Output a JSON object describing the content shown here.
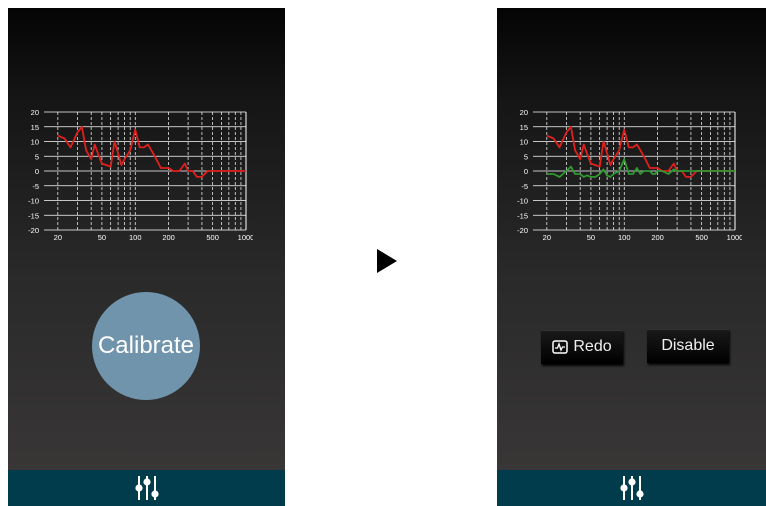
{
  "left_screen": {
    "calibrate_label": "Calibrate",
    "bottom_nav_icon": "equalizer-sliders-icon"
  },
  "transition_icon": "play-arrow-icon",
  "right_screen": {
    "redo_label": "Redo",
    "redo_icon": "waveform-icon",
    "disable_label": "Disable",
    "bottom_nav_icon": "equalizer-sliders-icon"
  },
  "colors": {
    "calibrate_button": "#7194ad",
    "bottom_bar": "#003c4c",
    "measured_curve": "#e0201c",
    "corrected_curve": "#2f9a2f",
    "grid": "#ffffff"
  },
  "chart_data": [
    {
      "type": "line",
      "x_scale": "log",
      "xlim": [
        15,
        1000
      ],
      "ylim": [
        -20,
        20
      ],
      "x_ticks": [
        20,
        50,
        100,
        200,
        500,
        1000
      ],
      "y_ticks": [
        20,
        15,
        10,
        5,
        0,
        -5,
        -10,
        -15,
        -20
      ],
      "grid": true,
      "series": [
        {
          "color": "#e0201c",
          "x": [
            20,
            23,
            26,
            30,
            33,
            36,
            40,
            43,
            46,
            50,
            55,
            60,
            65,
            70,
            75,
            80,
            90,
            100,
            110,
            120,
            130,
            140,
            150,
            160,
            170,
            180,
            190,
            200,
            220,
            250,
            280,
            300,
            330,
            360,
            400,
            450,
            500,
            600,
            700,
            800,
            900,
            1000
          ],
          "y": [
            12,
            11,
            8,
            13,
            15,
            7,
            4,
            9,
            6,
            2.5,
            2,
            1.5,
            10,
            6,
            2,
            4,
            7,
            14,
            8,
            8,
            9,
            7,
            5,
            3,
            1,
            1,
            1,
            1,
            0,
            0,
            2.5,
            0,
            0,
            -2,
            -2,
            0,
            0,
            0,
            0,
            0,
            0,
            0
          ]
        }
      ]
    },
    {
      "type": "line",
      "x_scale": "log",
      "xlim": [
        15,
        1000
      ],
      "ylim": [
        -20,
        20
      ],
      "x_ticks": [
        20,
        50,
        100,
        200,
        500,
        1000
      ],
      "y_ticks": [
        20,
        15,
        10,
        5,
        0,
        -5,
        -10,
        -15,
        -20
      ],
      "grid": true,
      "series": [
        {
          "color": "#e0201c",
          "x": [
            20,
            23,
            26,
            30,
            33,
            36,
            40,
            43,
            46,
            50,
            55,
            60,
            65,
            70,
            75,
            80,
            90,
            100,
            110,
            120,
            130,
            140,
            150,
            160,
            170,
            180,
            190,
            200,
            220,
            250,
            280,
            300,
            330,
            360,
            400,
            450,
            500,
            600,
            700,
            800,
            900,
            1000
          ],
          "y": [
            12,
            11,
            8,
            13,
            15,
            7,
            4,
            9,
            6,
            2.5,
            2,
            1.5,
            10,
            6,
            2,
            4,
            7,
            14,
            8,
            8,
            9,
            7,
            5,
            3,
            1,
            1,
            1,
            1,
            0,
            0,
            2.5,
            0,
            0,
            -2,
            -2,
            0,
            0,
            0,
            0,
            0,
            0,
            0
          ]
        },
        {
          "color": "#2f9a2f",
          "x": [
            20,
            23,
            26,
            30,
            33,
            36,
            40,
            43,
            46,
            50,
            55,
            60,
            65,
            70,
            75,
            80,
            90,
            100,
            110,
            120,
            130,
            140,
            150,
            160,
            170,
            180,
            190,
            200,
            220,
            250,
            280,
            300,
            330,
            360,
            400,
            450,
            500,
            600,
            700,
            800,
            900,
            1000
          ],
          "y": [
            -1,
            -1,
            -2,
            0,
            1.5,
            -1,
            -1,
            -2,
            -1.5,
            -2,
            -2,
            -1,
            0.5,
            -1.5,
            -2,
            -1,
            0,
            4,
            -1,
            -1,
            1,
            -1,
            0,
            0,
            0,
            -1,
            -1,
            0,
            0,
            -1,
            0.5,
            0,
            0,
            0,
            0,
            0,
            0,
            0,
            0,
            0,
            0,
            0
          ]
        }
      ]
    }
  ]
}
